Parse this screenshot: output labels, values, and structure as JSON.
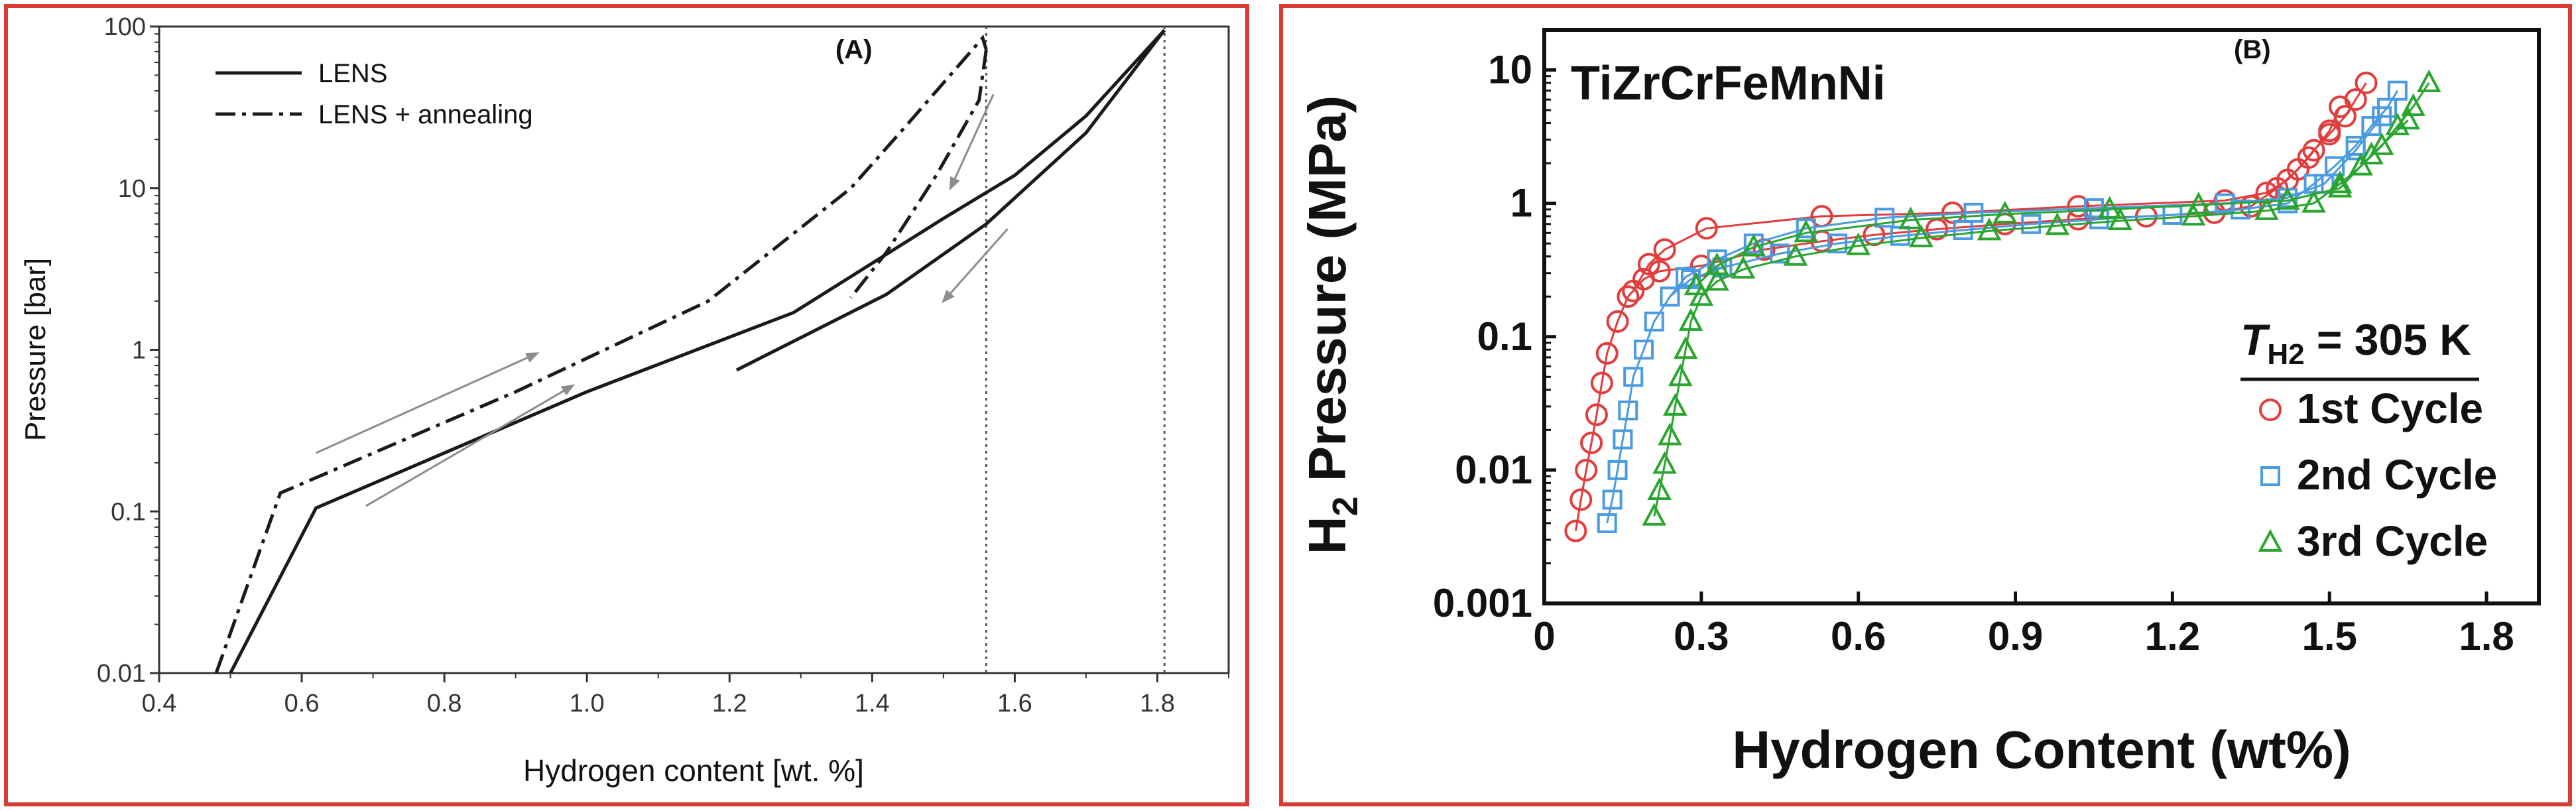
{
  "chart_data": [
    {
      "panel_label": "(A)",
      "type": "line",
      "xlabel": "Hydrogen content [wt. %]",
      "ylabel": "Pressure [bar]",
      "xlim": [
        0.4,
        1.9
      ],
      "ylim": [
        0.01,
        100
      ],
      "yscale": "log",
      "xticks": [
        0.4,
        0.6,
        0.8,
        1.0,
        1.2,
        1.4,
        1.6,
        1.8
      ],
      "xticklabels": [
        "0.4",
        "0.6",
        "0.8",
        "1.0",
        "1.2",
        "1.4",
        "1.6",
        "1.8"
      ],
      "yticks": [
        0.01,
        0.1,
        1,
        10,
        100
      ],
      "yticklabels": [
        "0.01",
        "0.1",
        "1",
        "10",
        "100"
      ],
      "grid": false,
      "legend_position": "top-left",
      "series": [
        {
          "name": "LENS",
          "style": "solid",
          "paths": [
            [
              [
                0.5,
                0.01
              ],
              [
                0.62,
                0.105
              ],
              [
                1.0,
                0.55
              ],
              [
                1.29,
                1.7
              ],
              [
                1.5,
                6.5
              ],
              [
                1.6,
                12
              ],
              [
                1.7,
                28
              ],
              [
                1.81,
                95
              ]
            ],
            [
              [
                1.81,
                95
              ],
              [
                1.7,
                22
              ],
              [
                1.56,
                6
              ],
              [
                1.42,
                2.2
              ],
              [
                1.21,
                0.75
              ]
            ]
          ]
        },
        {
          "name": "LENS + annealing",
          "style": "dashdot",
          "paths": [
            [
              [
                0.48,
                0.01
              ],
              [
                0.57,
                0.13
              ],
              [
                0.9,
                0.55
              ],
              [
                1.17,
                2
              ],
              [
                1.37,
                10
              ],
              [
                1.45,
                25
              ],
              [
                1.555,
                85
              ],
              [
                1.56,
                72
              ]
            ],
            [
              [
                1.56,
                72
              ],
              [
                1.55,
                35
              ],
              [
                1.49,
                12
              ],
              [
                1.42,
                4
              ],
              [
                1.37,
                2.1
              ]
            ]
          ]
        }
      ],
      "vlines": [
        1.56,
        1.81
      ],
      "arrows": [
        {
          "from": [
            0.62,
            0.23
          ],
          "to": [
            0.93,
            0.95
          ]
        },
        {
          "from": [
            0.69,
            0.108
          ],
          "to": [
            0.98,
            0.6
          ]
        },
        {
          "from": [
            1.57,
            38
          ],
          "to": [
            1.51,
            10
          ]
        },
        {
          "from": [
            1.59,
            5.6
          ],
          "to": [
            1.5,
            2.0
          ]
        }
      ],
      "colors": {
        "line": "#1a1a1a",
        "arrow": "#8c8c8c",
        "dotted": "#555555"
      }
    },
    {
      "panel_label": "(B)",
      "type": "scatter",
      "title": "TiZrCrFeMnNi",
      "xlabel": "Hydrogen Content (wt%)",
      "ylabel_main": "H",
      "ylabel_sub": "2",
      "ylabel_rest": " Pressure (MPa)",
      "xlim": [
        0,
        1.9
      ],
      "ylim": [
        0.001,
        20
      ],
      "yscale": "log",
      "xticks": [
        0,
        0.3,
        0.6,
        0.9,
        1.2,
        1.5,
        1.8
      ],
      "xticklabels": [
        "0",
        "0.3",
        "0.6",
        "0.9",
        "1.2",
        "1.5",
        "1.8"
      ],
      "yticks": [
        0.001,
        0.01,
        0.1,
        1,
        10
      ],
      "yticklabels": [
        "0.001",
        "0.01",
        "0.1",
        "1",
        "10"
      ],
      "grid": false,
      "legend_position": "bottom-right",
      "legend_title_main": "T",
      "legend_title_sub": "H2",
      "legend_title_rest": " = 305 K",
      "series": [
        {
          "name": "1st Cycle",
          "marker": "circle",
          "color": "#e23c3c",
          "absorption": [
            [
              0.06,
              0.0035
            ],
            [
              0.07,
              0.006
            ],
            [
              0.08,
              0.01
            ],
            [
              0.09,
              0.016
            ],
            [
              0.1,
              0.026
            ],
            [
              0.11,
              0.045
            ],
            [
              0.12,
              0.075
            ],
            [
              0.14,
              0.13
            ],
            [
              0.16,
              0.2
            ],
            [
              0.19,
              0.27
            ],
            [
              0.22,
              0.31
            ],
            [
              0.3,
              0.34
            ],
            [
              0.42,
              0.45
            ],
            [
              0.53,
              0.52
            ],
            [
              0.63,
              0.58
            ],
            [
              0.75,
              0.64
            ],
            [
              0.88,
              0.7
            ],
            [
              1.02,
              0.76
            ],
            [
              1.15,
              0.8
            ],
            [
              1.28,
              0.85
            ],
            [
              1.35,
              0.95
            ],
            [
              1.4,
              1.3
            ],
            [
              1.44,
              1.8
            ],
            [
              1.47,
              2.5
            ],
            [
              1.5,
              3.3
            ],
            [
              1.53,
              4.5
            ],
            [
              1.55,
              6
            ],
            [
              1.57,
              8
            ]
          ],
          "desorption": [
            [
              1.52,
              5.3
            ],
            [
              1.5,
              3.5
            ],
            [
              1.46,
              2.2
            ],
            [
              1.42,
              1.5
            ],
            [
              1.38,
              1.2
            ],
            [
              1.3,
              1.05
            ],
            [
              1.02,
              0.95
            ],
            [
              0.78,
              0.85
            ],
            [
              0.53,
              0.8
            ],
            [
              0.31,
              0.65
            ],
            [
              0.23,
              0.45
            ],
            [
              0.2,
              0.35
            ],
            [
              0.17,
              0.22
            ]
          ]
        },
        {
          "name": "2nd Cycle",
          "marker": "square",
          "color": "#4a9be0",
          "absorption": [
            [
              0.12,
              0.004
            ],
            [
              0.13,
              0.006
            ],
            [
              0.14,
              0.01
            ],
            [
              0.15,
              0.017
            ],
            [
              0.16,
              0.028
            ],
            [
              0.17,
              0.05
            ],
            [
              0.19,
              0.08
            ],
            [
              0.21,
              0.13
            ],
            [
              0.24,
              0.2
            ],
            [
              0.28,
              0.27
            ],
            [
              0.34,
              0.33
            ],
            [
              0.45,
              0.42
            ],
            [
              0.56,
              0.5
            ],
            [
              0.68,
              0.57
            ],
            [
              0.8,
              0.63
            ],
            [
              0.93,
              0.7
            ],
            [
              1.06,
              0.76
            ],
            [
              1.2,
              0.82
            ],
            [
              1.33,
              0.9
            ],
            [
              1.42,
              1.0
            ],
            [
              1.47,
              1.4
            ],
            [
              1.51,
              1.9
            ],
            [
              1.55,
              2.7
            ],
            [
              1.58,
              3.8
            ],
            [
              1.61,
              5.2
            ],
            [
              1.63,
              7
            ]
          ],
          "desorption": [
            [
              1.6,
              4.5
            ],
            [
              1.55,
              2.5
            ],
            [
              1.49,
              1.4
            ],
            [
              1.42,
              1.1
            ],
            [
              1.3,
              1.0
            ],
            [
              1.05,
              0.92
            ],
            [
              0.82,
              0.85
            ],
            [
              0.65,
              0.78
            ],
            [
              0.5,
              0.65
            ],
            [
              0.4,
              0.5
            ],
            [
              0.33,
              0.38
            ],
            [
              0.27,
              0.28
            ],
            [
              0.24,
              0.2
            ]
          ]
        },
        {
          "name": "3rd Cycle",
          "marker": "triangle",
          "color": "#2aa52f",
          "absorption": [
            [
              0.21,
              0.0045
            ],
            [
              0.22,
              0.007
            ],
            [
              0.23,
              0.011
            ],
            [
              0.24,
              0.018
            ],
            [
              0.25,
              0.03
            ],
            [
              0.26,
              0.05
            ],
            [
              0.27,
              0.08
            ],
            [
              0.28,
              0.13
            ],
            [
              0.3,
              0.2
            ],
            [
              0.33,
              0.26
            ],
            [
              0.38,
              0.32
            ],
            [
              0.48,
              0.4
            ],
            [
              0.6,
              0.48
            ],
            [
              0.72,
              0.55
            ],
            [
              0.85,
              0.62
            ],
            [
              0.98,
              0.68
            ],
            [
              1.1,
              0.74
            ],
            [
              1.24,
              0.8
            ],
            [
              1.38,
              0.88
            ],
            [
              1.47,
              1.0
            ],
            [
              1.52,
              1.4
            ],
            [
              1.56,
              1.9
            ],
            [
              1.6,
              2.7
            ],
            [
              1.63,
              3.8
            ],
            [
              1.66,
              5.3
            ],
            [
              1.69,
              8
            ]
          ],
          "desorption": [
            [
              1.65,
              4.2
            ],
            [
              1.58,
              2.3
            ],
            [
              1.52,
              1.3
            ],
            [
              1.42,
              1.05
            ],
            [
              1.25,
              0.97
            ],
            [
              1.08,
              0.9
            ],
            [
              0.88,
              0.83
            ],
            [
              0.7,
              0.75
            ],
            [
              0.5,
              0.6
            ],
            [
              0.4,
              0.47
            ],
            [
              0.33,
              0.34
            ],
            [
              0.29,
              0.24
            ]
          ]
        }
      ]
    }
  ]
}
